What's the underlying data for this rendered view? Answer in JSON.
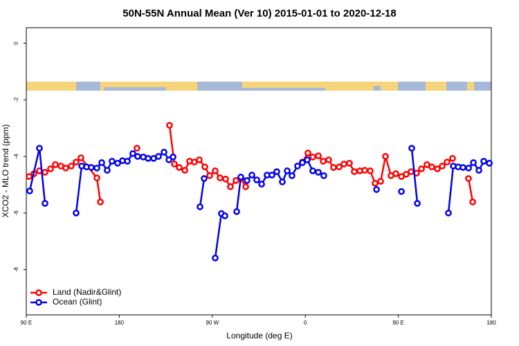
{
  "chart_data": {
    "type": "line",
    "title": "50N-55N Annual Mean (Ver 10)   2015-01-01 to 2020-12-18",
    "x_label": "Longitude (deg E)",
    "y_label": "XCO2 - MLO trend (ppm)",
    "xlim": [
      90,
      540
    ],
    "ylim": [
      -9.6,
      0.55
    ],
    "xticks": [
      {
        "value": 90,
        "label": "90 E"
      },
      180,
      {
        "value": 270,
        "label": "90 W"
      },
      {
        "value": 360,
        "label": "0"
      },
      {
        "value": 450,
        "label": "90 E"
      },
      {
        "value": 540,
        "label": "180"
      }
    ],
    "yticks": [
      0,
      -2,
      -4,
      -6,
      -8
    ],
    "legend": "bottom-left",
    "series": [
      {
        "name": "Land (Nadir&Glint)",
        "color": "#ff0000",
        "x": [
          92.7,
          97.4,
          102.7,
          108.1,
          113.4,
          118.1,
          123.5,
          128.2,
          133.5,
          138.2,
          142.9,
          158.3,
          161.7,
          null,
          197.1,
          null,
          228.6,
          233.3,
          238.0,
          243.4,
          248.0,
          252.7,
          257.4,
          262.8,
          267.5,
          272.8,
          277.5,
          282.9,
          287.5,
          292.9,
          297.6,
          302.3,
          null,
          357.2,
          362.5,
          367.2,
          372.6,
          377.3,
          382.6,
          387.3,
          392.7,
          397.4,
          402.7,
          407.4,
          412.8,
          417.5,
          422.8,
          427.5,
          432.9,
          437.6,
          442.9,
          447.6,
          453.0,
          457.6,
          462.3,
          467.7,
          472.4,
          477.7,
          482.4,
          487.8,
          492.5,
          497.2,
          502.5,
          null,
          517.9,
          522.0
        ],
        "values": [
          -4.71,
          -4.61,
          -4.51,
          -4.56,
          -4.44,
          -4.29,
          -4.34,
          -4.41,
          -4.34,
          -4.2,
          -4.05,
          -4.76,
          -5.61,
          null,
          -3.71,
          null,
          -2.9,
          -4.27,
          -4.39,
          -4.49,
          -4.17,
          -4.2,
          -4.12,
          -4.37,
          -4.68,
          -4.51,
          -4.76,
          -4.8,
          -5.07,
          -4.85,
          -4.78,
          -5.07,
          null,
          -4.2,
          -3.88,
          -4.02,
          -3.98,
          -4.17,
          -4.12,
          -4.39,
          -4.37,
          -4.27,
          -4.24,
          -4.54,
          -4.51,
          -4.49,
          -4.51,
          -4.95,
          -4.88,
          -4.0,
          -4.68,
          -4.61,
          -4.71,
          -4.63,
          -4.54,
          -4.59,
          -4.44,
          -4.29,
          -4.37,
          -4.44,
          -4.34,
          -4.2,
          -4.07,
          null,
          -4.78,
          -5.61
        ]
      },
      {
        "name": "Ocean (Glint)",
        "color": "#0000ee",
        "x": [
          93.3,
          102.7,
          108.1,
          null,
          138.2,
          143.6,
          148.3,
          152.9,
          158.3,
          163.0,
          168.3,
          173.0,
          178.4,
          183.1,
          187.8,
          193.1,
          197.8,
          203.2,
          207.9,
          213.2,
          217.9,
          223.3,
          228.0,
          232.0,
          null,
          258.1,
          262.1,
          null,
          272.8,
          278.8,
          282.2,
          null,
          293.6,
          297.6,
          303.6,
          308.3,
          313.0,
          317.7,
          323.0,
          327.7,
          332.4,
          337.8,
          342.5,
          347.1,
          352.5,
          357.2,
          361.9,
          367.2,
          372.6,
          377.9,
          null,
          428.9,
          null,
          453.0,
          null,
          463.0,
          468.4,
          null,
          498.5,
          503.2,
          507.9,
          512.6,
          518.0,
          522.7,
          528.0,
          532.7,
          538.1
        ],
        "values": [
          -5.22,
          -3.71,
          -5.66,
          null,
          -6.0,
          -4.34,
          -4.37,
          -4.39,
          -4.41,
          -4.22,
          -4.49,
          -4.17,
          -4.24,
          -4.15,
          -4.17,
          -3.9,
          -4.0,
          -4.02,
          -4.07,
          -4.07,
          -4.0,
          -3.85,
          -4.12,
          -4.02,
          null,
          -5.78,
          -4.78,
          null,
          -7.59,
          -6.02,
          -6.1,
          null,
          -5.95,
          -4.73,
          -4.85,
          -4.66,
          -4.83,
          -4.98,
          -4.66,
          -4.66,
          -4.54,
          -4.9,
          -4.51,
          -4.68,
          -4.34,
          -4.22,
          -4.12,
          -4.51,
          -4.56,
          -4.68,
          null,
          -5.17,
          null,
          -5.24,
          null,
          -3.71,
          -5.66,
          null,
          -6.0,
          -4.34,
          -4.37,
          -4.39,
          -4.41,
          -4.22,
          -4.49,
          -4.17,
          -4.24
        ]
      }
    ]
  }
}
